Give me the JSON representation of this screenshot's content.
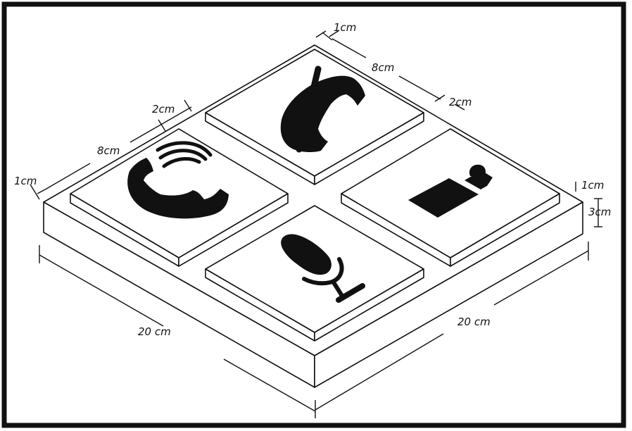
{
  "labels": {
    "top_edge_margin": "1cm",
    "top_edge_button": "8cm",
    "top_edge_gap": "2cm",
    "left_edge_gap": "2cm",
    "left_edge_button": "8cm",
    "left_edge_margin": "1cm",
    "right_button_height": "1cm",
    "right_base_height": "3cm",
    "base_length_left": "20 cm",
    "base_length_right": "20 cm"
  },
  "buttons": [
    {
      "id": "call",
      "icon": "phone-call-icon"
    },
    {
      "id": "hangup",
      "icon": "phone-hangup-icon"
    },
    {
      "id": "video",
      "icon": "video-camera-icon"
    },
    {
      "id": "mic",
      "icon": "microphone-icon"
    }
  ],
  "colors": {
    "ink": "#111111",
    "paper": "#ffffff"
  }
}
